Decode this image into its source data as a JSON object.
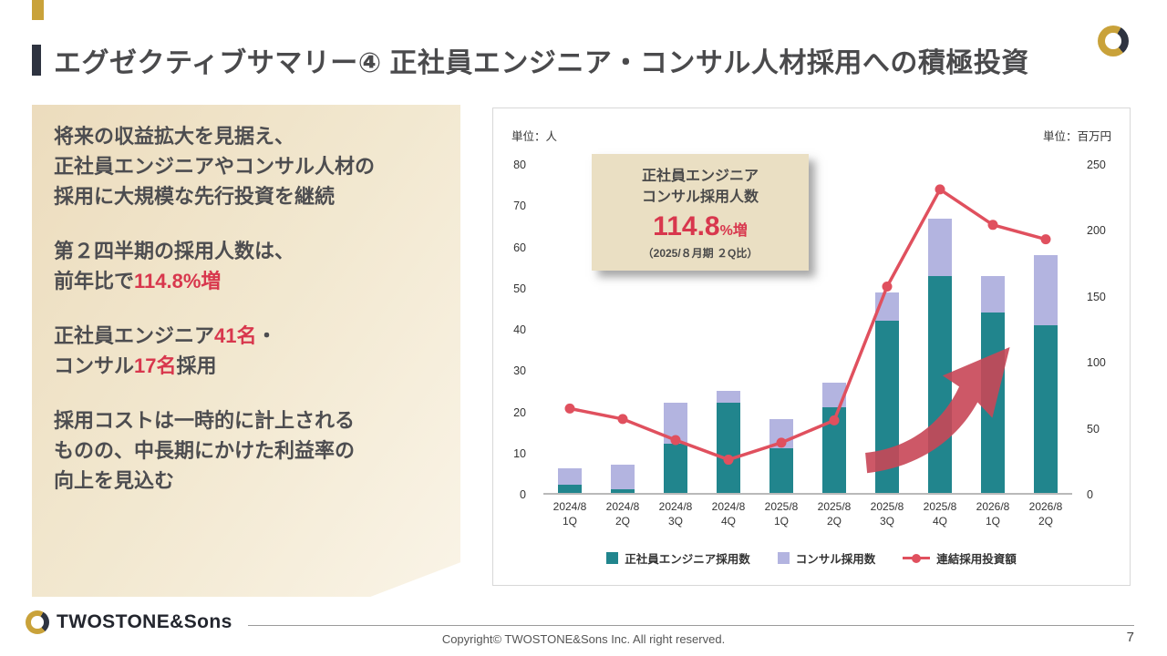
{
  "slide": {
    "title": "エグゼクティブサマリー④ 正社員エンジニア・コンサル人材採用への積極投資",
    "page_number": "7",
    "copyright": "Copyright© TWOSTONE&Sons Inc. All right reserved.",
    "logo_text": "TWOSTONE&Sons"
  },
  "left_panel": {
    "p1": "将来の収益拡大を見据え、\n正社員エンジニアやコンサル人材の\n採用に大規模な先行投資を継続",
    "p2_pre": "第２四半期の採用人数は、\n前年比で",
    "p2_red": "114.8%増",
    "p3_pre": "正社員エンジニア",
    "p3_red1": "41名",
    "p3_mid": "・\nコンサル",
    "p3_red2": "17名",
    "p3_post": "採用",
    "p4": "採用コストは一時的に計上される\nものの、中長期にかけた利益率の\n向上を見込む"
  },
  "chart": {
    "unit_left": "単位：人",
    "unit_right": "単位：百万円",
    "annotation": {
      "line1": "正社員エンジニア",
      "line2": "コンサル採用人数",
      "value": "114.8",
      "value_suffix": "%増",
      "note": "（2025/８月期 ２Q比）"
    },
    "legend": [
      {
        "label": "正社員エンジニア採用数",
        "color": "#21858d",
        "type": "square"
      },
      {
        "label": "コンサル採用数",
        "color": "#b3b4e0",
        "type": "square"
      },
      {
        "label": "連結採用投資額",
        "color": "#e0505e",
        "type": "line"
      }
    ]
  },
  "chart_data": {
    "type": "bar+line",
    "categories": [
      "2024/8\n1Q",
      "2024/8\n2Q",
      "2024/8\n3Q",
      "2024/8\n4Q",
      "2025/8\n1Q",
      "2025/8\n2Q",
      "2025/8\n3Q",
      "2025/8\n4Q",
      "2026/8\n1Q",
      "2026/8\n2Q"
    ],
    "series": [
      {
        "name": "正社員エンジニア採用数",
        "type": "bar",
        "axis": "left",
        "color": "#21858d",
        "values": [
          2,
          1,
          12,
          22,
          11,
          21,
          42,
          53,
          44,
          41
        ]
      },
      {
        "name": "コンサル採用数",
        "type": "bar",
        "axis": "left",
        "color": "#b3b4e0",
        "values": [
          4,
          6,
          10,
          3,
          7,
          6,
          7,
          14,
          9,
          17
        ]
      },
      {
        "name": "連結採用投資額",
        "type": "line",
        "axis": "right",
        "color": "#e0505e",
        "values": [
          65,
          57,
          41,
          26,
          39,
          56,
          158,
          232,
          205,
          194
        ]
      }
    ],
    "left_axis": {
      "min": 0,
      "max": 80,
      "step": 10,
      "label": "単位：人"
    },
    "right_axis": {
      "min": 0,
      "max": 250,
      "step": 50,
      "label": "単位：百万円"
    },
    "grid": false,
    "legend_position": "bottom",
    "title": ""
  }
}
